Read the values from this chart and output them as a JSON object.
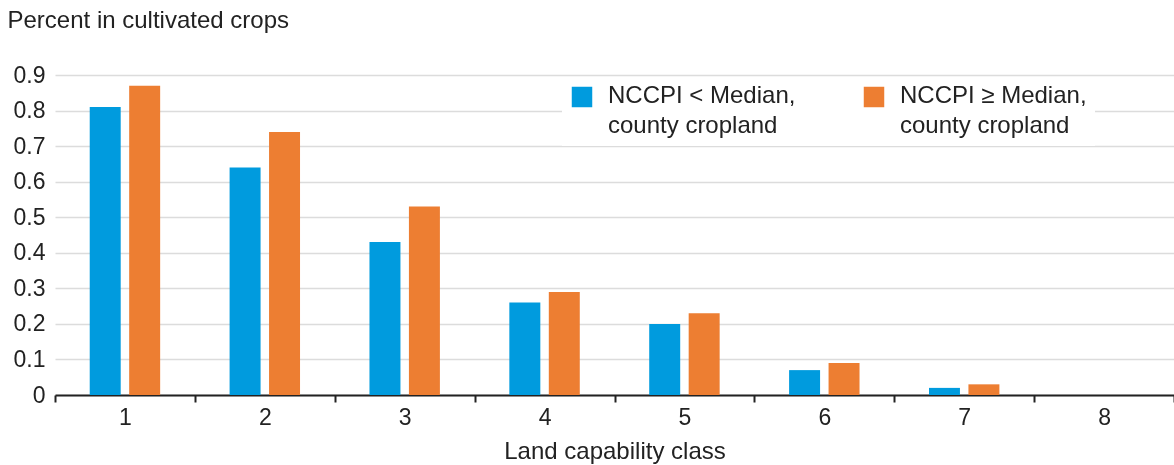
{
  "chart_data": {
    "type": "bar",
    "xlabel": "Land capability class",
    "ylabel": "Percent in cultivated crops",
    "categories": [
      "1",
      "2",
      "3",
      "4",
      "5",
      "6",
      "7",
      "8"
    ],
    "series": [
      {
        "name": "NCCPI < Median, county cropland",
        "color": "#009bde",
        "values": [
          0.81,
          0.64,
          0.43,
          0.26,
          0.2,
          0.07,
          0.02,
          0
        ]
      },
      {
        "name": "NCCPI ≥ Median, county cropland",
        "color": "#ed7e32",
        "values": [
          0.87,
          0.74,
          0.53,
          0.29,
          0.23,
          0.09,
          0.03,
          0
        ]
      }
    ],
    "ylim": [
      0,
      0.9
    ],
    "yticks": [
      0,
      0.1,
      0.2,
      0.3,
      0.4,
      0.5,
      0.6,
      0.7,
      0.8,
      0.9
    ],
    "grid": "y",
    "legend": "top right"
  }
}
